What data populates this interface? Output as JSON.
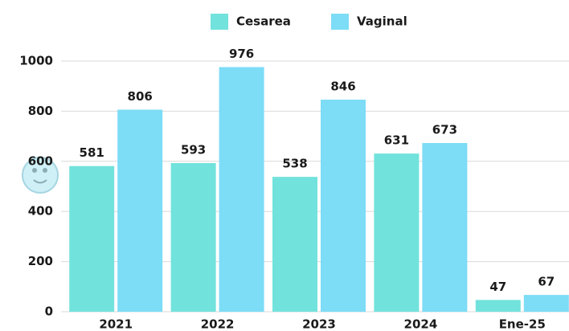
{
  "chart_data": {
    "type": "bar",
    "categories": [
      "2021",
      "2022",
      "2023",
      "2024",
      "Ene-25"
    ],
    "series": [
      {
        "name": "Cesarea",
        "color": "#72e2dc",
        "values": [
          581,
          593,
          538,
          631,
          47
        ]
      },
      {
        "name": "Vaginal",
        "color": "#7ddcf6",
        "values": [
          806,
          976,
          846,
          673,
          67
        ]
      }
    ],
    "ylim": [
      0,
      1000
    ],
    "yticks": [
      0,
      200,
      400,
      600,
      800,
      1000
    ],
    "grid": true
  }
}
